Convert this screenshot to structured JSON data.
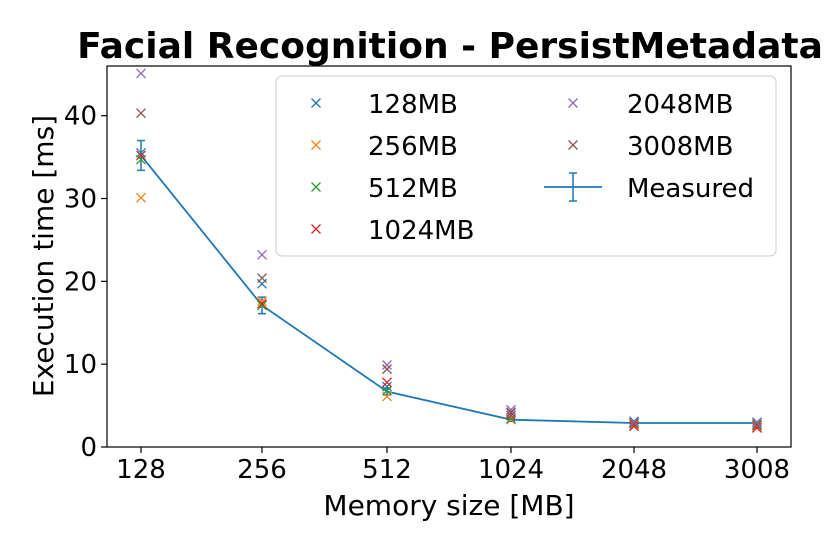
{
  "chart_data": {
    "type": "scatter",
    "title": "Facial Recognition - PersistMetadata",
    "xlabel": "Memory size [MB]",
    "ylabel": "Execution time [ms]",
    "categories": [
      "128",
      "256",
      "512",
      "1024",
      "2048",
      "3008"
    ],
    "ylim": [
      0,
      46
    ],
    "yticks": [
      0,
      10,
      20,
      30,
      40
    ],
    "grid": false,
    "legend_position": "top-right",
    "series": [
      {
        "name": "128MB",
        "marker": "x",
        "color": "#1f77b4",
        "values": [
          35.5,
          19.7,
          7.3,
          4.1,
          3.1,
          3.0
        ]
      },
      {
        "name": "256MB",
        "marker": "x",
        "color": "#ff7f0e",
        "values": [
          30.1,
          17.6,
          6.1,
          3.3,
          2.6,
          2.4
        ]
      },
      {
        "name": "512MB",
        "marker": "x",
        "color": "#2ca02c",
        "values": [
          34.7,
          17.1,
          6.8,
          3.4,
          2.9,
          2.7
        ]
      },
      {
        "name": "1024MB",
        "marker": "x",
        "color": "#d62728",
        "values": [
          35.2,
          17.3,
          7.8,
          3.8,
          2.5,
          2.3
        ]
      },
      {
        "name": "2048MB",
        "marker": "x",
        "color": "#9467bd",
        "values": [
          45.1,
          23.2,
          9.9,
          4.5,
          3.0,
          2.9
        ]
      },
      {
        "name": "3008MB",
        "marker": "x",
        "color": "#8c564b",
        "values": [
          40.3,
          20.4,
          9.4,
          4.2,
          2.8,
          2.6
        ]
      },
      {
        "name": "Measured",
        "marker": "line-errorbar",
        "color": "#1f77b4",
        "values": [
          35.2,
          17.1,
          6.7,
          3.3,
          2.9,
          2.9
        ],
        "error": [
          1.8,
          1.0,
          0.4,
          0.2,
          0.1,
          0.1
        ]
      }
    ]
  }
}
